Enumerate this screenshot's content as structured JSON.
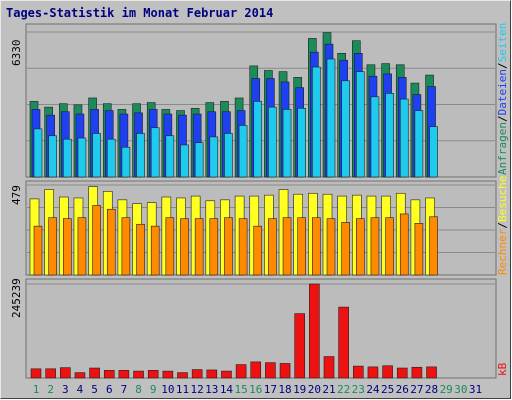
{
  "title": "Tages-Statistik im Monat Februar 2014",
  "colors": {
    "anfragen": "#1b8b5a",
    "dateien": "#1e40f0",
    "seiten": "#1ecbee",
    "besuche": "#ffff22",
    "rechner": "#ff8a00",
    "kb": "#ee1111",
    "weekend_label": "#1b8b5a",
    "weekday_label": "#000080",
    "panel_bg": "#bcbcbc"
  },
  "chart_data": [
    {
      "type": "bar",
      "panel": "requests",
      "ymax_label": "6330",
      "ymax": 6330,
      "legend": [
        "Anfragen",
        "/",
        "Dateien",
        "/",
        "Seiten"
      ],
      "categories": [
        "1",
        "2",
        "3",
        "4",
        "5",
        "6",
        "7",
        "8",
        "9",
        "10",
        "11",
        "12",
        "13",
        "14",
        "15",
        "16",
        "17",
        "18",
        "19",
        "20",
        "21",
        "22",
        "23",
        "24",
        "25",
        "26",
        "27",
        "28",
        "29",
        "30",
        "31"
      ],
      "series": [
        {
          "name": "Anfragen",
          "values": [
            3300,
            3050,
            3200,
            3150,
            3450,
            3200,
            2950,
            3200,
            3250,
            2950,
            2900,
            3000,
            3250,
            3300,
            3450,
            4850,
            4650,
            4600,
            4350,
            6050,
            6300,
            5400,
            5950,
            4900,
            4950,
            4900,
            4100,
            4450,
            0,
            0,
            0
          ]
        },
        {
          "name": "Dateien",
          "values": [
            2950,
            2700,
            2850,
            2750,
            2950,
            2900,
            2750,
            2800,
            2950,
            2750,
            2700,
            2750,
            2850,
            2850,
            2900,
            4300,
            4300,
            4150,
            3900,
            5450,
            5800,
            5100,
            5400,
            4400,
            4500,
            4350,
            3600,
            3950,
            0,
            0,
            0
          ]
        },
        {
          "name": "Seiten",
          "values": [
            2100,
            1800,
            1650,
            1700,
            1900,
            1650,
            1300,
            1900,
            2150,
            1800,
            1400,
            1500,
            1750,
            1900,
            2250,
            3300,
            3050,
            2950,
            3000,
            4800,
            5150,
            4200,
            4600,
            3500,
            3650,
            3400,
            2900,
            2200,
            0,
            0,
            0
          ]
        }
      ]
    },
    {
      "type": "bar",
      "panel": "visits",
      "ymax_label": "479",
      "ymax": 479,
      "legend": [
        "Rechner",
        "/",
        "Besuche"
      ],
      "categories": [
        "1",
        "2",
        "3",
        "4",
        "5",
        "6",
        "7",
        "8",
        "9",
        "10",
        "11",
        "12",
        "13",
        "14",
        "15",
        "16",
        "17",
        "18",
        "19",
        "20",
        "21",
        "22",
        "23",
        "24",
        "25",
        "26",
        "27",
        "28",
        "29",
        "30",
        "31"
      ],
      "series": [
        {
          "name": "Besuche",
          "values": [
            405,
            455,
            415,
            410,
            470,
            445,
            400,
            380,
            385,
            415,
            410,
            420,
            395,
            400,
            420,
            420,
            425,
            455,
            430,
            435,
            430,
            420,
            425,
            420,
            420,
            435,
            400,
            410,
            0,
            0,
            0
          ]
        },
        {
          "name": "Rechner",
          "values": [
            260,
            305,
            300,
            305,
            370,
            350,
            305,
            270,
            260,
            305,
            300,
            300,
            300,
            305,
            300,
            260,
            300,
            305,
            305,
            305,
            300,
            280,
            300,
            305,
            305,
            325,
            275,
            310,
            0,
            0,
            0
          ]
        }
      ]
    },
    {
      "type": "bar",
      "panel": "kb",
      "ymax_label": "245239",
      "ymax": 245239,
      "legend": [
        "kB"
      ],
      "categories": [
        "1",
        "2",
        "3",
        "4",
        "5",
        "6",
        "7",
        "8",
        "9",
        "10",
        "11",
        "12",
        "13",
        "14",
        "15",
        "16",
        "17",
        "18",
        "19",
        "20",
        "21",
        "22",
        "23",
        "24",
        "25",
        "26",
        "27",
        "28",
        "29",
        "30",
        "31"
      ],
      "series": [
        {
          "name": "kB",
          "values": [
            24000,
            24000,
            27000,
            14000,
            26000,
            20000,
            20000,
            18000,
            20000,
            18000,
            14000,
            22000,
            21000,
            18000,
            35000,
            42000,
            40000,
            38000,
            168000,
            245239,
            56000,
            185000,
            31000,
            29000,
            32000,
            26000,
            28000,
            29000,
            0,
            0,
            0
          ]
        }
      ]
    }
  ],
  "weekend_days": [
    1,
    2,
    8,
    9,
    15,
    16,
    22,
    23,
    29,
    30
  ]
}
